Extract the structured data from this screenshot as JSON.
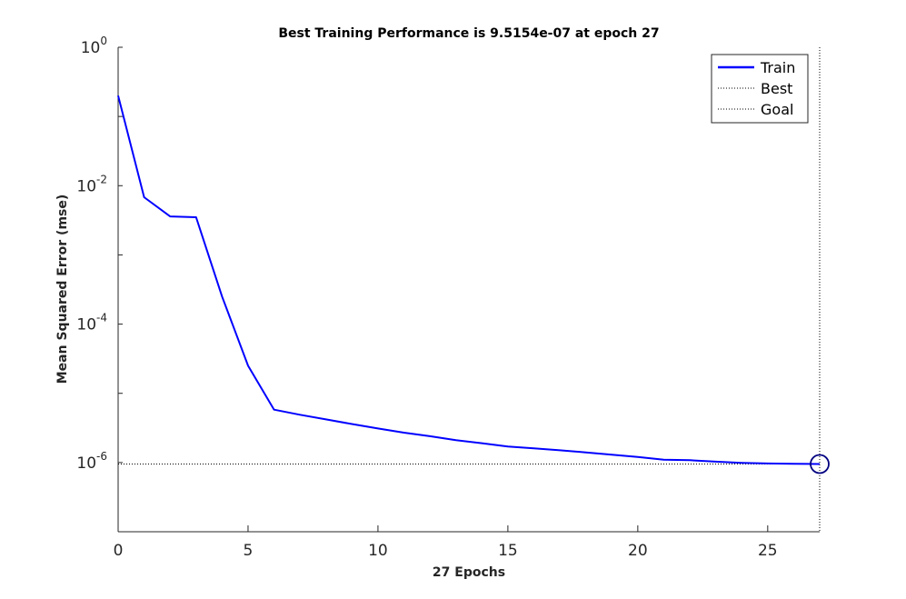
{
  "chart_data": {
    "type": "line",
    "title": "Best Training Performance is 9.5154e-07 at epoch 27",
    "xlabel": "27 Epochs",
    "ylabel": "Mean Squared Error  (mse)",
    "xlim": [
      0,
      27
    ],
    "ylim": [
      1e-07,
      1
    ],
    "yscale": "log",
    "grid": false,
    "legend_position": "top-right",
    "x_ticks": [
      0,
      5,
      10,
      15,
      20,
      25
    ],
    "x_tick_labels": [
      "0",
      "5",
      "10",
      "15",
      "20",
      "25"
    ],
    "y_ticks": [
      {
        "value": 1,
        "base": "10",
        "exp": "0"
      },
      {
        "value": 0.01,
        "base": "10",
        "exp": "-2"
      },
      {
        "value": 0.0001,
        "base": "10",
        "exp": "-4"
      },
      {
        "value": 1e-06,
        "base": "10",
        "exp": "-6"
      }
    ],
    "series": [
      {
        "name": "Train",
        "style": "solid",
        "color": "#0000ff",
        "x": [
          0,
          1,
          2,
          3,
          4,
          5,
          6,
          7,
          8,
          9,
          10,
          11,
          12,
          13,
          14,
          15,
          16,
          17,
          18,
          19,
          20,
          21,
          22,
          23,
          24,
          25,
          26,
          27
        ],
        "y": [
          0.2,
          0.0068,
          0.0036,
          0.0035,
          0.00025,
          2.5e-05,
          5.8e-06,
          4.9e-06,
          4.2e-06,
          3.6e-06,
          3.1e-06,
          2.7e-06,
          2.4e-06,
          2.1e-06,
          1.9e-06,
          1.7e-06,
          1.6e-06,
          1.5e-06,
          1.4e-06,
          1.3e-06,
          1.2e-06,
          1.1e-06,
          1.08e-06,
          1.03e-06,
          9.9e-07,
          9.7e-07,
          9.6e-07,
          9.5154e-07
        ]
      },
      {
        "name": "Best",
        "style": "dotted",
        "color": "#000000",
        "marker": "circle",
        "marker_color": "#000080",
        "point": [
          27,
          9.5154e-07
        ]
      },
      {
        "name": "Goal",
        "style": "dotted",
        "color": "#000000",
        "y": 0
      }
    ]
  }
}
